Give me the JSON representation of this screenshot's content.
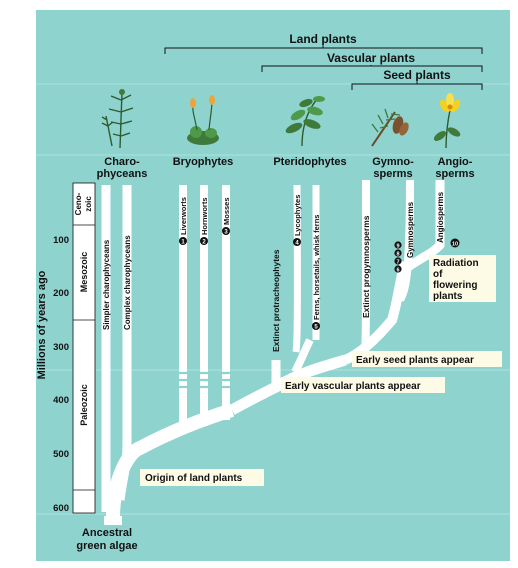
{
  "brackets": {
    "land": "Land plants",
    "vascular": "Vascular plants",
    "seed": "Seed plants"
  },
  "groups": {
    "charophyceans": [
      "Charo-",
      "phyceans"
    ],
    "bryophytes": "Bryophytes",
    "pteridophytes": "Pteridophytes",
    "gymnosperms": [
      "Gymno-",
      "sperms"
    ],
    "angiosperms": [
      "Angio-",
      "sperms"
    ]
  },
  "timescale": {
    "axis_label": "Millions of years ago",
    "ticks": [
      "100",
      "200",
      "300",
      "400",
      "500",
      "600"
    ],
    "eras": {
      "cenozoic": [
        "Ceno-",
        "zoic"
      ],
      "mesozoic": "Mesozoic",
      "paleozoic": "Paleozoic"
    }
  },
  "lineages": {
    "simpler_charophyceans": "Simpler charophyceans",
    "complex_charophyceans": "Complex charophyceans",
    "liverworts": "Liverworts",
    "hornworts": "Hornworts",
    "mosses": "Mosses",
    "extinct_protracheophytes": "Extinct protracheophytes",
    "lycophytes": "Lycophytes",
    "ferns": "Ferns, horsetails, whisk ferns",
    "extinct_progymnosperms": "Extinct progymnosperms",
    "gymnosperms": "Gymnosperms",
    "angiosperms": "Angiosperms"
  },
  "markers": {
    "liverworts": "1",
    "hornworts": "2",
    "mosses": "3",
    "lycophytes": "4",
    "ferns": "5",
    "gymnosperms": [
      "6",
      "7",
      "8",
      "9"
    ],
    "angiosperms": "10"
  },
  "events": {
    "flowering": [
      "Radiation",
      "of",
      "flowering",
      "plants"
    ],
    "seed": "Early seed plants appear",
    "vascular": "Early vascular plants appear",
    "land": "Origin of land plants",
    "ancestor": [
      "Ancestral",
      "green algae"
    ]
  },
  "colors": {
    "background": "#8fd3cf",
    "branch": "#ffffff",
    "label_box": "#fdfbe6",
    "text": "#111111"
  }
}
